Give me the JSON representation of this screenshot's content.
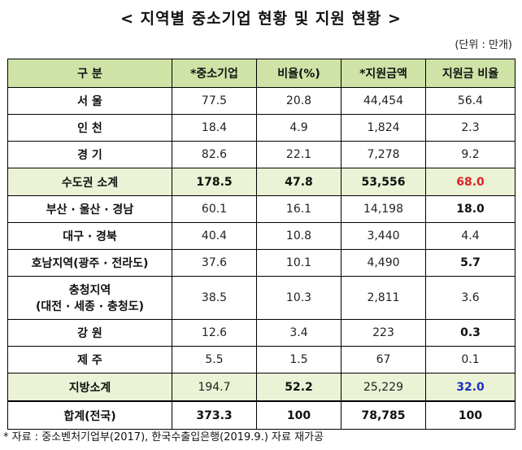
{
  "title": "< 지역별 중소기업 현황 및 지원 현황 >",
  "unit": "(단위 : 만개)",
  "headers": [
    "구 분",
    "*중소기업",
    "비율(%)",
    "*지원금액",
    "지원금 비율"
  ],
  "rows": [
    {
      "region": "서 울",
      "sme": "77.5",
      "ratio": "20.8",
      "amount": "44,454",
      "amount_ratio": "56.4"
    },
    {
      "region": "인 천",
      "sme": "18.4",
      "ratio": "4.9",
      "amount": "1,824",
      "amount_ratio": "2.3"
    },
    {
      "region": "경 기",
      "sme": "82.6",
      "ratio": "22.1",
      "amount": "7,278",
      "amount_ratio": "9.2"
    },
    {
      "region": "수도권 소계",
      "sme": "178.5",
      "ratio": "47.8",
      "amount": "53,556",
      "amount_ratio": "68.0"
    },
    {
      "region": "부산 · 울산 · 경남",
      "sme": "60.1",
      "ratio": "16.1",
      "amount": "14,198",
      "amount_ratio": "18.0"
    },
    {
      "region": "대구 · 경북",
      "sme": "40.4",
      "ratio": "10.8",
      "amount": "3,440",
      "amount_ratio": "4.4"
    },
    {
      "region": "호남지역(광주 · 전라도)",
      "sme": "37.6",
      "ratio": "10.1",
      "amount": "4,490",
      "amount_ratio": "5.7"
    },
    {
      "region_line1": "충청지역",
      "region_line2": "(대전 · 세종 · 충청도)",
      "sme": "38.5",
      "ratio": "10.3",
      "amount": "2,811",
      "amount_ratio": "3.6"
    },
    {
      "region": "강 원",
      "sme": "12.6",
      "ratio": "3.4",
      "amount": "223",
      "amount_ratio": "0.3"
    },
    {
      "region": "제 주",
      "sme": "5.5",
      "ratio": "1.5",
      "amount": "67",
      "amount_ratio": "0.1"
    },
    {
      "region": "지방소계",
      "sme": "194.7",
      "ratio": "52.2",
      "amount": "25,229",
      "amount_ratio": "32.0"
    },
    {
      "region": "합계(전국)",
      "sme": "373.3",
      "ratio": "100",
      "amount": "78,785",
      "amount_ratio": "100"
    }
  ],
  "footnote": "* 자료 : 중소벤처기업부(2017), 한국수출입은행(2019.9.) 자료 재가공",
  "colors": {
    "header_bg": "#cfe3a6",
    "subtotal_bg": "#eaf3d5",
    "highlight_red": "#e0222a",
    "highlight_blue": "#1e2fbf"
  }
}
